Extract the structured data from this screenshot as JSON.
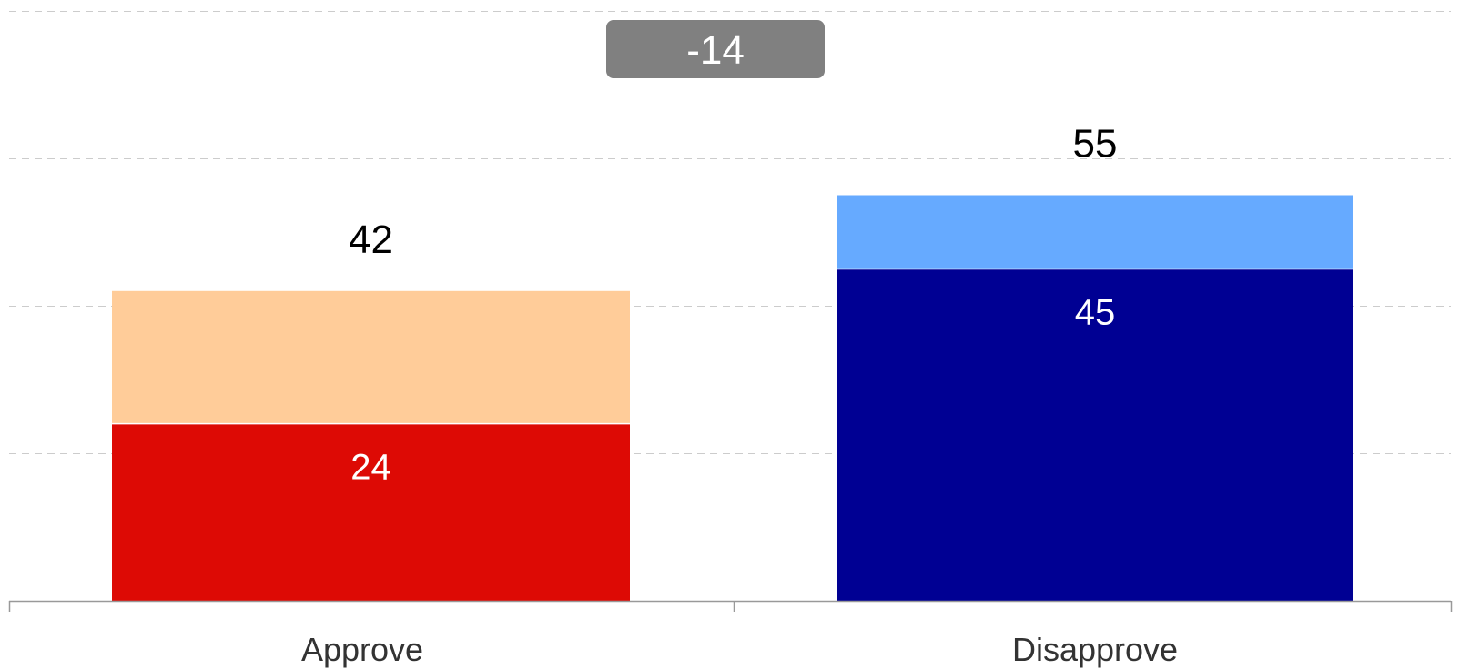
{
  "chart_data": {
    "type": "bar",
    "stacked": true,
    "categories": [
      "Approve",
      "Disapprove"
    ],
    "totals": [
      42,
      55
    ],
    "strong": [
      24,
      45
    ],
    "somewhat": [
      18,
      10
    ],
    "net": "-14",
    "ylim": [
      0,
      80
    ],
    "yticks": [
      0,
      20,
      40,
      60,
      80
    ],
    "grid": true,
    "legend": "none",
    "colors": {
      "approve_strong": "#DD0A05",
      "approve_somewhat": "#FFCC99",
      "disapprove_strong": "#000093",
      "disapprove_somewhat": "#66AAFF",
      "net_badge": "#808080",
      "grid": "#CCCCCC",
      "axis": "#999999",
      "total_label": "#000000",
      "inner_label": "#FFFFFF",
      "category_label": "#333333"
    }
  }
}
